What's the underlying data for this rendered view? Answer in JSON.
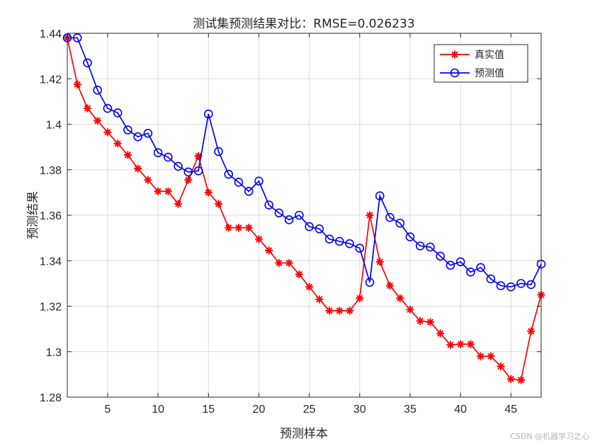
{
  "chart_data": {
    "type": "line",
    "title": "测试集预测结果对比：RMSE=0.026233",
    "xlabel": "预测样本",
    "ylabel": "预测结果",
    "xlim": [
      1,
      48
    ],
    "ylim": [
      1.28,
      1.44
    ],
    "xticks": [
      5,
      10,
      15,
      20,
      25,
      30,
      35,
      40,
      45
    ],
    "yticks": [
      1.28,
      1.3,
      1.32,
      1.34,
      1.36,
      1.38,
      1.4,
      1.42,
      1.44
    ],
    "ytick_labels": [
      "1.28",
      "1.3",
      "1.32",
      "1.34",
      "1.36",
      "1.38",
      "1.4",
      "1.42",
      "1.44"
    ],
    "grid": true,
    "legend_position": "top-right",
    "x": [
      1,
      2,
      3,
      4,
      5,
      6,
      7,
      8,
      9,
      10,
      11,
      12,
      13,
      14,
      15,
      16,
      17,
      18,
      19,
      20,
      21,
      22,
      23,
      24,
      25,
      26,
      27,
      28,
      29,
      30,
      31,
      32,
      33,
      34,
      35,
      36,
      37,
      38,
      39,
      40,
      41,
      42,
      43,
      44,
      45,
      46,
      47,
      48
    ],
    "series": [
      {
        "name": "真实值",
        "color": "#ff0000",
        "marker": "asterisk",
        "values": [
          1.438,
          1.4175,
          1.407,
          1.4015,
          1.3965,
          1.3915,
          1.3865,
          1.3805,
          1.3755,
          1.3705,
          1.3705,
          1.365,
          1.3755,
          1.386,
          1.37,
          1.365,
          1.3545,
          1.3545,
          1.3545,
          1.3495,
          1.3445,
          1.339,
          1.339,
          1.334,
          1.3285,
          1.323,
          1.318,
          1.318,
          1.318,
          1.3235,
          1.36,
          1.3395,
          1.329,
          1.3235,
          1.3185,
          1.3135,
          1.313,
          1.308,
          1.303,
          1.3033,
          1.3033,
          1.298,
          1.298,
          1.2935,
          1.288,
          1.2875,
          1.309,
          1.325
        ]
      },
      {
        "name": "预测值",
        "color": "#0000ff",
        "marker": "circle",
        "values": [
          1.438,
          1.438,
          1.427,
          1.415,
          1.407,
          1.405,
          1.3975,
          1.3945,
          1.396,
          1.3875,
          1.3855,
          1.3815,
          1.379,
          1.3795,
          1.4045,
          1.388,
          1.378,
          1.3745,
          1.3705,
          1.375,
          1.3645,
          1.361,
          1.358,
          1.36,
          1.355,
          1.354,
          1.3495,
          1.3485,
          1.3475,
          1.3455,
          1.3305,
          1.3685,
          1.359,
          1.3565,
          1.3505,
          1.3465,
          1.346,
          1.342,
          1.338,
          1.3395,
          1.335,
          1.337,
          1.332,
          1.329,
          1.3285,
          1.33,
          1.3295,
          1.3385
        ]
      }
    ]
  },
  "watermark": "CSDN @机器学习之心"
}
